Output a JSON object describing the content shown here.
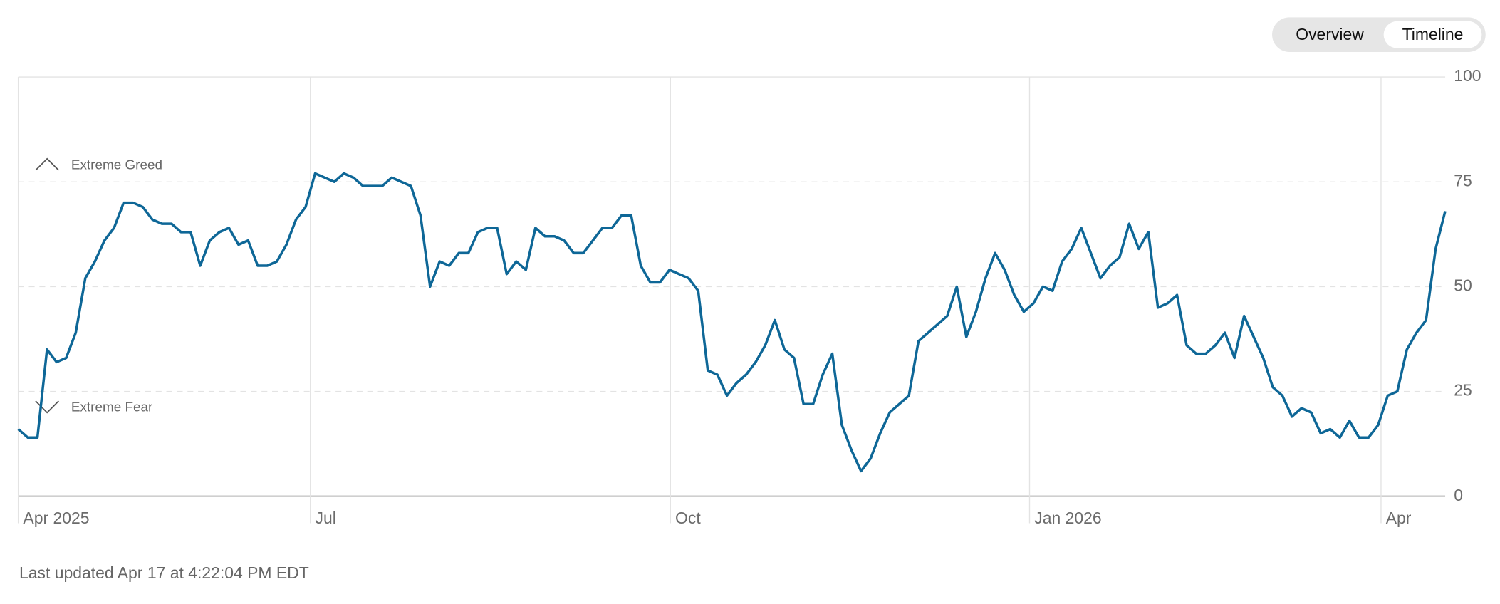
{
  "controls": {
    "overview": "Overview",
    "timeline": "Timeline"
  },
  "chart_data": {
    "type": "line",
    "values": [
      16,
      14,
      14,
      35,
      32,
      33,
      39,
      52,
      56,
      61,
      64,
      70,
      70,
      69,
      66,
      65,
      65,
      63,
      63,
      55,
      61,
      63,
      64,
      60,
      61,
      55,
      55,
      56,
      60,
      66,
      69,
      77,
      76,
      75,
      77,
      76,
      74,
      74,
      74,
      76,
      75,
      74,
      67,
      50,
      56,
      55,
      58,
      58,
      63,
      64,
      64,
      53,
      56,
      54,
      64,
      62,
      62,
      61,
      58,
      58,
      61,
      64,
      64,
      67,
      67,
      55,
      51,
      51,
      54,
      53,
      52,
      49,
      30,
      29,
      24,
      27,
      29,
      32,
      36,
      42,
      35,
      33,
      22,
      22,
      29,
      34,
      17,
      11,
      6,
      9,
      15,
      20,
      22,
      24,
      37,
      39,
      41,
      43,
      50,
      38,
      44,
      52,
      58,
      54,
      48,
      44,
      46,
      50,
      49,
      56,
      59,
      64,
      58,
      52,
      55,
      57,
      65,
      59,
      63,
      45,
      46,
      48,
      36,
      34,
      34,
      36,
      39,
      33,
      43,
      38,
      33,
      26,
      24,
      19,
      21,
      20,
      15,
      16,
      14,
      18,
      14,
      14,
      17,
      24,
      25,
      35,
      39,
      42,
      59,
      68
    ],
    "color": "#0e6797",
    "xlim": [
      0,
      149
    ],
    "xticks": [
      {
        "value": 0,
        "label": "Apr 2025"
      },
      {
        "value": 30.5,
        "label": "Jul"
      },
      {
        "value": 68.1,
        "label": "Oct"
      },
      {
        "value": 105.6,
        "label": "Jan 2026"
      },
      {
        "value": 142.3,
        "label": "Apr"
      }
    ],
    "ylim": [
      0,
      100
    ],
    "yticks": [
      0,
      25,
      50,
      75,
      100
    ],
    "grid": true,
    "annotations": [
      {
        "label": "Extreme Greed",
        "y": 75
      },
      {
        "label": "Extreme Fear",
        "y": 25
      }
    ]
  },
  "footer": "Last updated Apr 17 at 4:22:04 PM EDT"
}
